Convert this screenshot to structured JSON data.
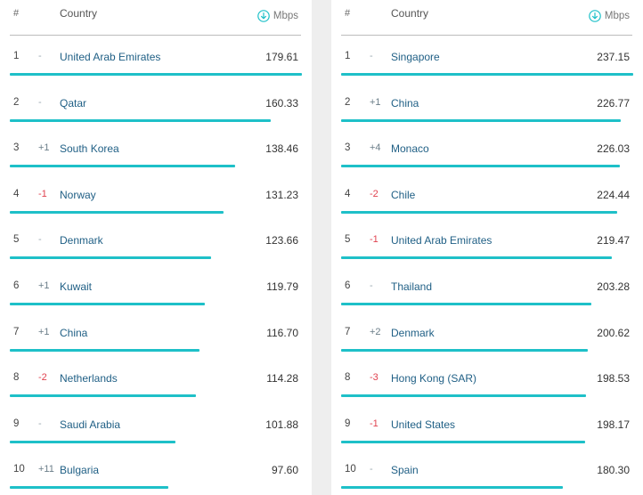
{
  "left": {
    "header": {
      "rank": "#",
      "country": "Country",
      "unit": "Mbps",
      "icon": "download-circle-icon"
    },
    "rows": [
      {
        "rank": "1",
        "change": "-",
        "country": "United Arab Emirates",
        "speed": "179.61",
        "direction": "neutral"
      },
      {
        "rank": "2",
        "change": "-",
        "country": "Qatar",
        "speed": "160.33",
        "direction": "neutral"
      },
      {
        "rank": "3",
        "change": "+1",
        "country": "South Korea",
        "speed": "138.46",
        "direction": "up"
      },
      {
        "rank": "4",
        "change": "-1",
        "country": "Norway",
        "speed": "131.23",
        "direction": "down"
      },
      {
        "rank": "5",
        "change": "-",
        "country": "Denmark",
        "speed": "123.66",
        "direction": "neutral"
      },
      {
        "rank": "6",
        "change": "+1",
        "country": "Kuwait",
        "speed": "119.79",
        "direction": "up"
      },
      {
        "rank": "7",
        "change": "+1",
        "country": "China",
        "speed": "116.70",
        "direction": "up"
      },
      {
        "rank": "8",
        "change": "-2",
        "country": "Netherlands",
        "speed": "114.28",
        "direction": "down"
      },
      {
        "rank": "9",
        "change": "-",
        "country": "Saudi Arabia",
        "speed": "101.88",
        "direction": "neutral"
      },
      {
        "rank": "10",
        "change": "+11",
        "country": "Bulgaria",
        "speed": "97.60",
        "direction": "up"
      }
    ]
  },
  "right": {
    "header": {
      "rank": "#",
      "country": "Country",
      "unit": "Mbps",
      "icon": "download-circle-icon"
    },
    "rows": [
      {
        "rank": "1",
        "change": "-",
        "country": "Singapore",
        "speed": "237.15",
        "direction": "neutral"
      },
      {
        "rank": "2",
        "change": "+1",
        "country": "China",
        "speed": "226.77",
        "direction": "up"
      },
      {
        "rank": "3",
        "change": "+4",
        "country": "Monaco",
        "speed": "226.03",
        "direction": "up"
      },
      {
        "rank": "4",
        "change": "-2",
        "country": "Chile",
        "speed": "224.44",
        "direction": "down"
      },
      {
        "rank": "5",
        "change": "-1",
        "country": "United Arab Emirates",
        "speed": "219.47",
        "direction": "down"
      },
      {
        "rank": "6",
        "change": "-",
        "country": "Thailand",
        "speed": "203.28",
        "direction": "neutral"
      },
      {
        "rank": "7",
        "change": "+2",
        "country": "Denmark",
        "speed": "200.62",
        "direction": "up"
      },
      {
        "rank": "8",
        "change": "-3",
        "country": "Hong Kong (SAR)",
        "speed": "198.53",
        "direction": "down"
      },
      {
        "rank": "9",
        "change": "-1",
        "country": "United States",
        "speed": "198.17",
        "direction": "down"
      },
      {
        "rank": "10",
        "change": "-",
        "country": "Spain",
        "speed": "180.30",
        "direction": "neutral"
      }
    ]
  },
  "colors": {
    "bar": "#1ec0c8",
    "down": "#e0424f",
    "link": "#1f5f85",
    "icon": "#1ec0c8"
  }
}
